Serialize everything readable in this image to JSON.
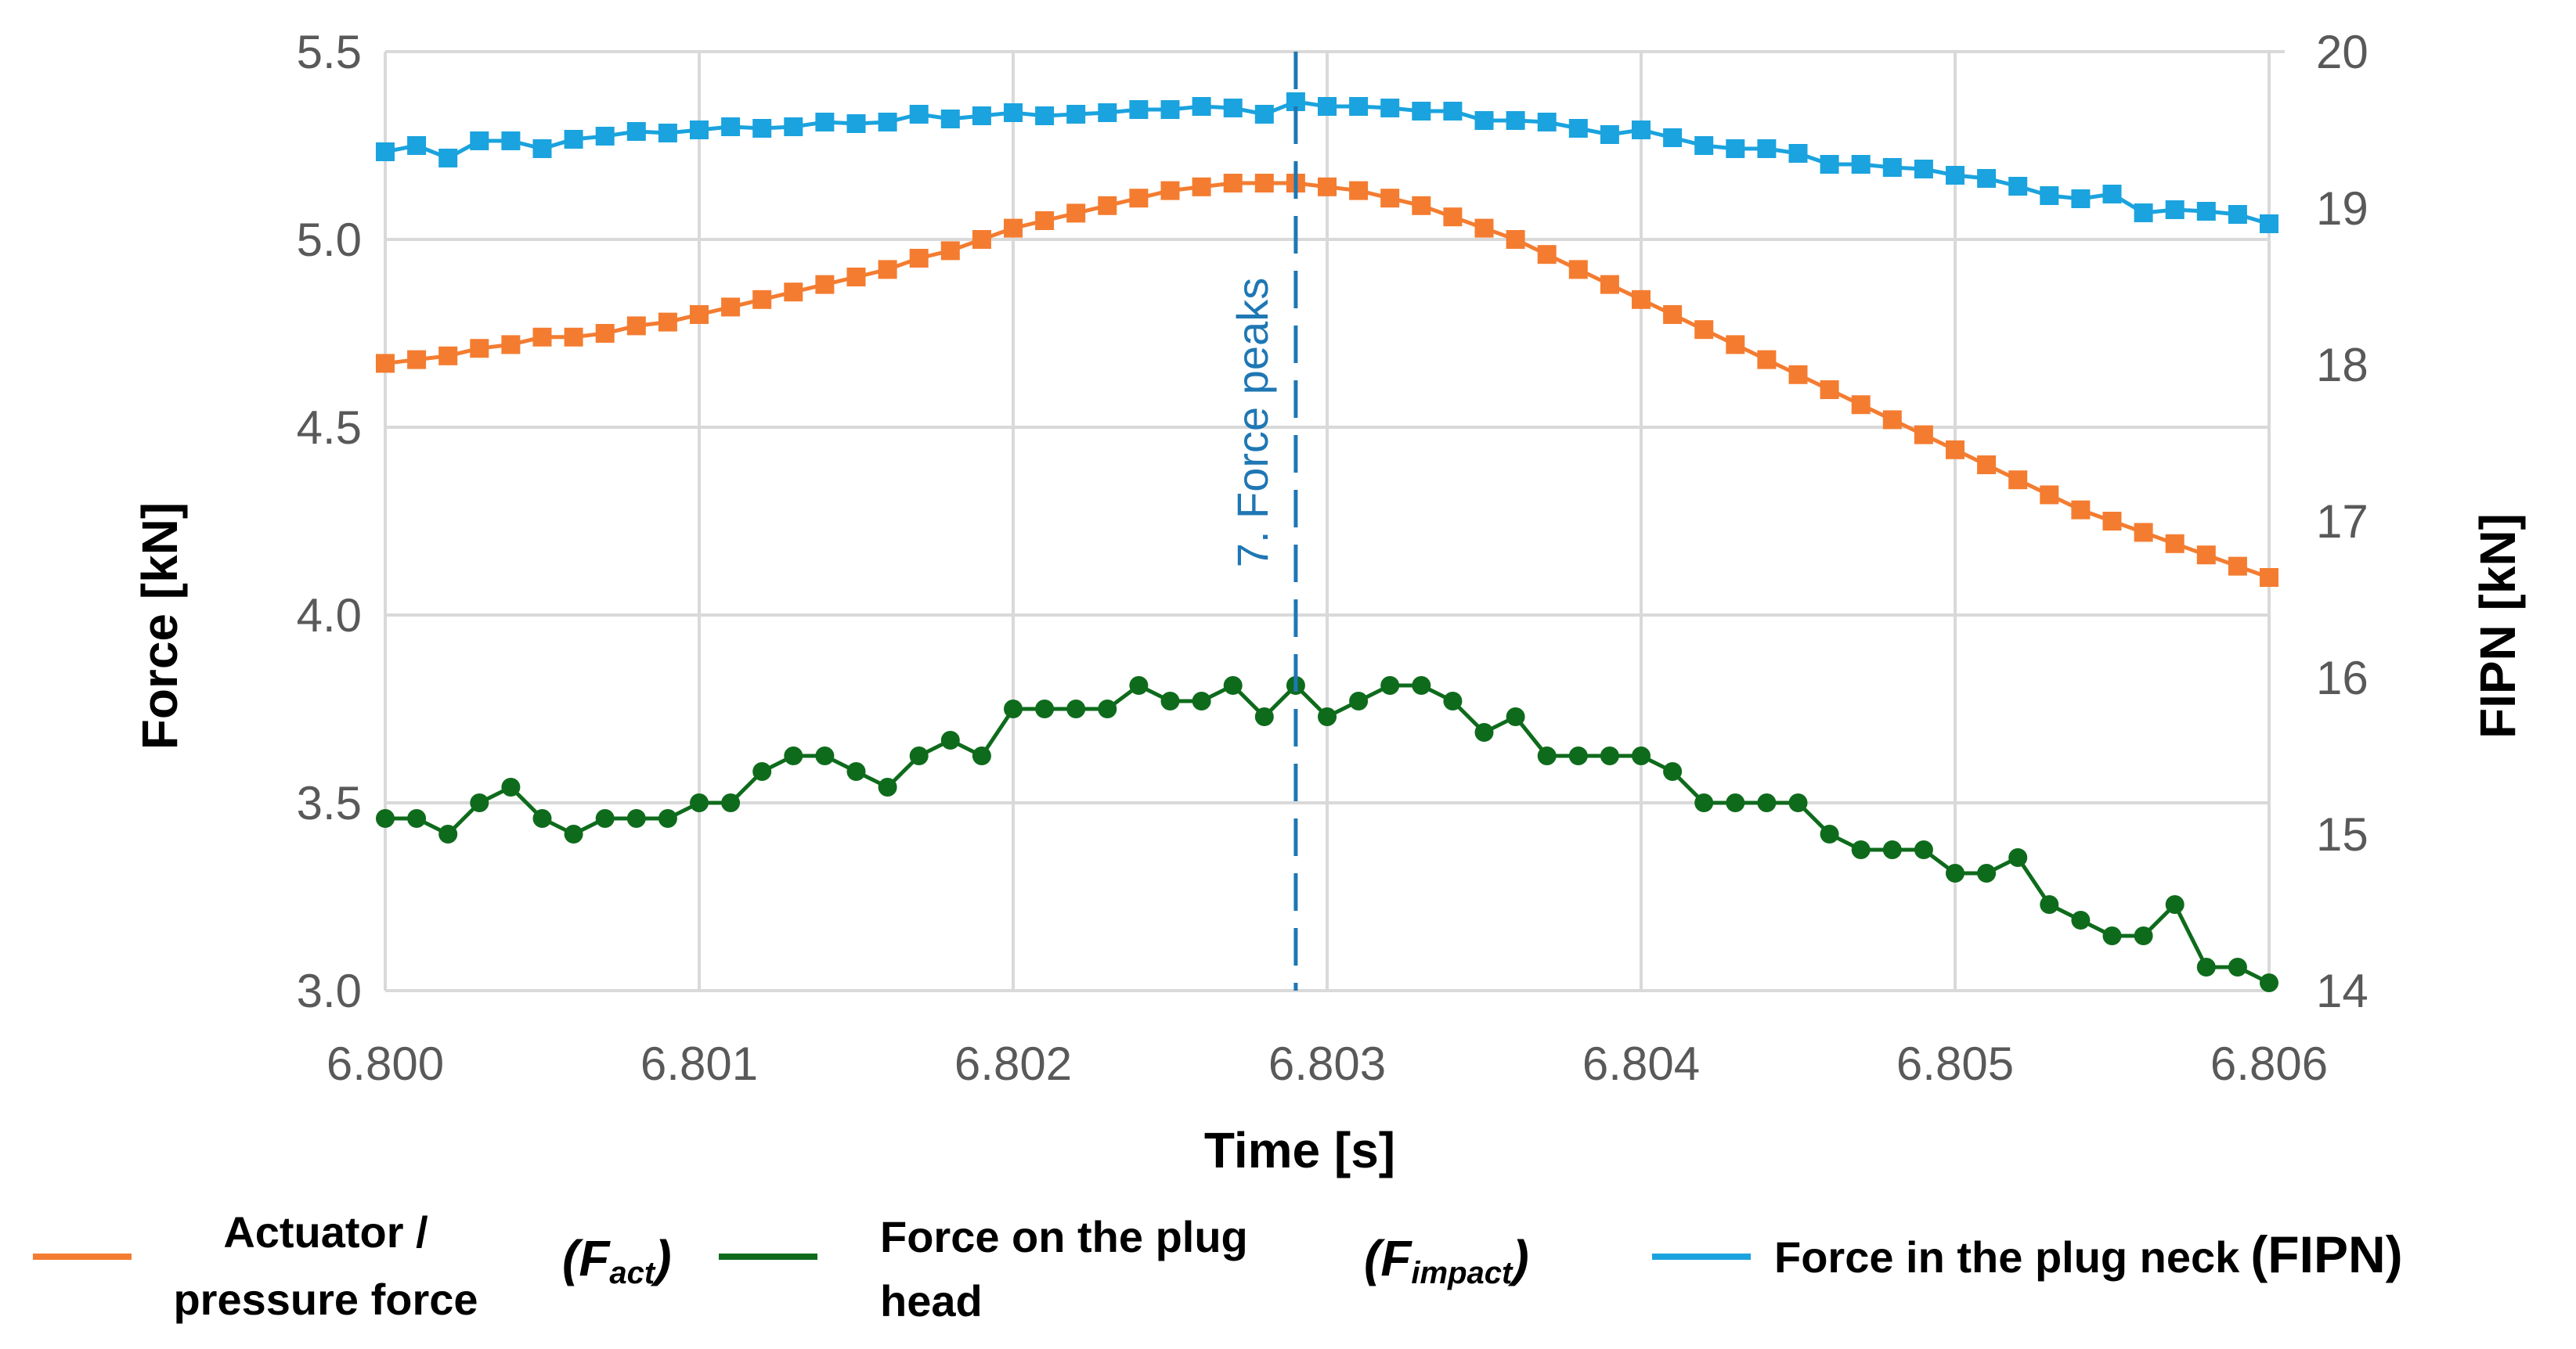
{
  "chart_data": {
    "type": "line",
    "xlabel": "Time [s]",
    "ylabel": "Force [kN]",
    "y2label": "FIPN [kN]",
    "xlim": [
      6.8,
      6.806
    ],
    "ylim": [
      3.0,
      5.5
    ],
    "y2lim": [
      14,
      20
    ],
    "x_ticks": [
      "6.800",
      "6.801",
      "6.802",
      "6.803",
      "6.804",
      "6.805",
      "6.806"
    ],
    "y_ticks": [
      "3.0",
      "3.5",
      "4.0",
      "4.5",
      "5.0",
      "5.5"
    ],
    "y2_ticks": [
      "14",
      "15",
      "16",
      "17",
      "18",
      "19",
      "20"
    ],
    "grid": true,
    "legend_position": "bottom",
    "annotation": {
      "text": "7. Force peaks",
      "x": 6.8029
    },
    "x": [
      6.8,
      6.8001,
      6.8002,
      6.8003,
      6.8004,
      6.8005,
      6.8006,
      6.8007,
      6.8008,
      6.8009,
      6.801,
      6.8011,
      6.8012,
      6.8013,
      6.8014,
      6.8015,
      6.8016,
      6.8017,
      6.8018,
      6.8019,
      6.802,
      6.8021,
      6.8022,
      6.8023,
      6.8024,
      6.8025,
      6.8026,
      6.8027,
      6.8028,
      6.8029,
      6.803,
      6.8031,
      6.8032,
      6.8033,
      6.8034,
      6.8035,
      6.8036,
      6.8037,
      6.8038,
      6.8039,
      6.804,
      6.8041,
      6.8042,
      6.8043,
      6.8044,
      6.8045,
      6.8046,
      6.8047,
      6.8048,
      6.8049,
      6.805,
      6.8051,
      6.8052,
      6.8053,
      6.8054,
      6.8055,
      6.8056,
      6.8057,
      6.8058,
      6.8059,
      6.806
    ],
    "series": [
      {
        "name": "Actuator / pressure force",
        "symbol": "F",
        "symbol_sub": "act",
        "axis": "left",
        "color": "#F47C30",
        "marker": "square",
        "values": [
          4.67,
          4.68,
          4.69,
          4.71,
          4.72,
          4.74,
          4.74,
          4.75,
          4.77,
          4.78,
          4.8,
          4.82,
          4.84,
          4.86,
          4.88,
          4.9,
          4.92,
          4.95,
          4.97,
          5.0,
          5.03,
          5.05,
          5.07,
          5.09,
          5.11,
          5.13,
          5.14,
          5.15,
          5.15,
          5.15,
          5.14,
          5.13,
          5.11,
          5.09,
          5.06,
          5.03,
          5.0,
          4.96,
          4.92,
          4.88,
          4.84,
          4.8,
          4.76,
          4.72,
          4.68,
          4.64,
          4.6,
          4.56,
          4.52,
          4.48,
          4.44,
          4.4,
          4.36,
          4.32,
          4.28,
          4.25,
          4.22,
          4.19,
          4.16,
          4.13,
          4.1
        ]
      },
      {
        "name": "Force on the plug head",
        "symbol": "F",
        "symbol_sub": "impact",
        "axis": "right",
        "color": "#0E6B1C",
        "marker": "circle",
        "values": [
          15.1,
          15.1,
          15.0,
          15.2,
          15.3,
          15.1,
          15.0,
          15.1,
          15.1,
          15.1,
          15.2,
          15.2,
          15.4,
          15.5,
          15.5,
          15.4,
          15.3,
          15.5,
          15.6,
          15.5,
          15.8,
          15.8,
          15.8,
          15.8,
          15.95,
          15.85,
          15.85,
          15.95,
          15.75,
          15.95,
          15.75,
          15.85,
          15.95,
          15.95,
          15.85,
          15.65,
          15.75,
          15.5,
          15.5,
          15.5,
          15.5,
          15.4,
          15.2,
          15.2,
          15.2,
          15.2,
          15.0,
          14.9,
          14.9,
          14.9,
          14.75,
          14.75,
          14.85,
          14.55,
          14.45,
          14.35,
          14.35,
          14.55,
          14.15,
          14.15,
          14.05
        ]
      },
      {
        "name": "Force in the plug neck",
        "symbol": "FIPN",
        "axis": "right",
        "color": "#1AA3DE",
        "marker": "square",
        "values": [
          19.36,
          19.4,
          19.32,
          19.43,
          19.43,
          19.38,
          19.44,
          19.46,
          19.49,
          19.48,
          19.5,
          19.52,
          19.51,
          19.52,
          19.55,
          19.54,
          19.55,
          19.6,
          19.57,
          19.59,
          19.61,
          19.59,
          19.6,
          19.61,
          19.63,
          19.63,
          19.65,
          19.64,
          19.6,
          19.68,
          19.65,
          19.65,
          19.64,
          19.62,
          19.62,
          19.56,
          19.56,
          19.55,
          19.51,
          19.47,
          19.5,
          19.45,
          19.4,
          19.38,
          19.38,
          19.35,
          19.28,
          19.28,
          19.26,
          19.25,
          19.21,
          19.19,
          19.14,
          19.08,
          19.06,
          19.09,
          18.97,
          18.99,
          18.98,
          18.96,
          18.9
        ]
      }
    ]
  }
}
